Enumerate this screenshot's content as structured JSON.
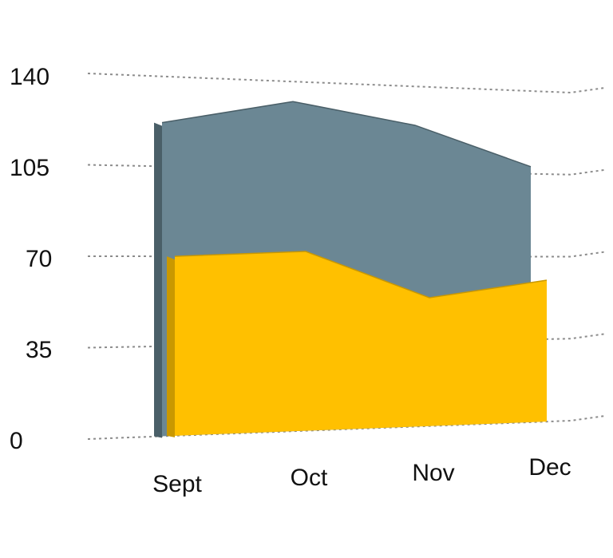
{
  "chart_data": {
    "type": "area",
    "title": "",
    "xlabel": "",
    "ylabel": "",
    "categories": [
      "Sept",
      "Oct",
      "Nov",
      "Dec"
    ],
    "y_ticks": [
      "0",
      "35",
      "70",
      "105",
      "140"
    ],
    "ylim": [
      0,
      140
    ],
    "grid": true,
    "legend": "none",
    "series": [
      {
        "values": [
          122,
          132,
          124,
          108
        ],
        "color": "#6B8794",
        "side_color": "#4A5F68"
      },
      {
        "values": [
          70,
          72,
          53,
          60
        ],
        "color": "#FFC000",
        "side_color": "#C99800"
      }
    ]
  }
}
